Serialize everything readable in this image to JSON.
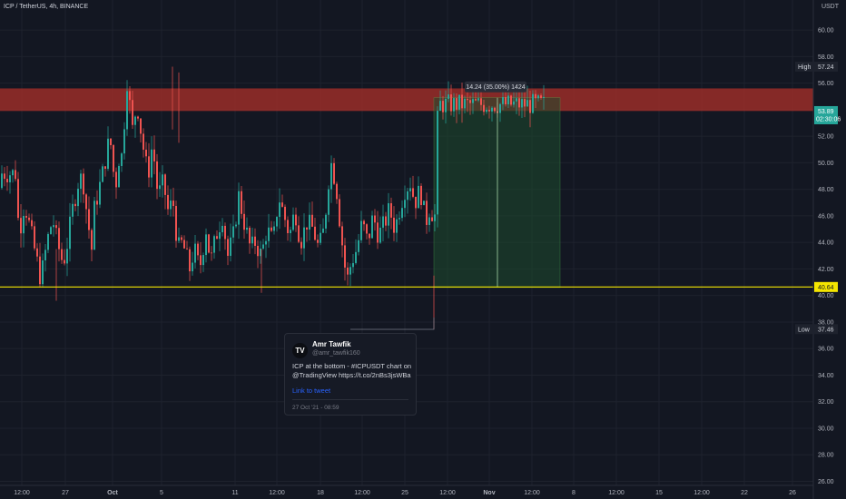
{
  "header": {
    "symbol": "ICP / TetherUS, 4h, BINANCE",
    "currency": "USDT"
  },
  "colors": {
    "background": "#131722",
    "up": "#26a69a",
    "down": "#ef5350",
    "resistance_zone": "#b2302a",
    "support_line": "#f5e600",
    "measure_zone": "#1e4a2e"
  },
  "chart_data": {
    "type": "candlestick",
    "ylim": [
      26,
      62
    ],
    "y_ticks": [
      26,
      28,
      30,
      32,
      34,
      36,
      38,
      40,
      42,
      44,
      46,
      48,
      50,
      52,
      54,
      56,
      58,
      60
    ],
    "y_tick_labels": [
      "26.00",
      "28.00",
      "30.00",
      "32.00",
      "34.00",
      "36.00",
      "38.00",
      "40.00",
      "42.00",
      "44.00",
      "46.00",
      "48.00",
      "50.00",
      "52.00",
      "54.00",
      "56.00",
      "58.00",
      "60.00"
    ],
    "x_ticks": [
      "12:00",
      "27",
      "Oct",
      "5",
      "11",
      "12:00",
      "18",
      "12:00",
      "25",
      "12:00",
      "Nov",
      "12:00",
      "8",
      "12:00",
      "15",
      "12:00",
      "22",
      "26"
    ],
    "grid": true,
    "close_path": [
      [
        22,
        48.1
      ],
      [
        -6,
        49.2
      ],
      [
        4,
        44.6
      ],
      [
        6,
        47.0
      ],
      [
        10,
        43.8
      ],
      [
        8,
        41.2
      ],
      [
        7,
        44.1
      ],
      [
        6,
        45.8
      ],
      [
        5,
        44.0
      ],
      [
        6,
        42.5
      ],
      [
        3,
        43.0
      ],
      [
        8,
        46.5
      ],
      [
        6,
        48.5
      ],
      [
        5,
        49.0
      ],
      [
        5,
        46.0
      ],
      [
        6,
        43.0
      ],
      [
        2,
        46.5
      ],
      [
        10,
        49.5
      ],
      [
        7,
        52.0
      ],
      [
        6,
        48.0
      ],
      [
        6,
        51.5
      ],
      [
        2,
        49.5
      ],
      [
        4,
        56.8
      ],
      [
        7,
        52.5
      ],
      [
        5,
        54.5
      ],
      [
        6,
        51.5
      ],
      [
        6,
        49.0
      ],
      [
        5,
        51.5
      ],
      [
        6,
        47.5
      ],
      [
        6,
        48.5
      ],
      [
        6,
        46.0
      ],
      [
        4,
        47.5
      ],
      [
        6,
        43.5
      ],
      [
        5,
        44.0
      ],
      [
        8,
        42.0
      ],
      [
        5,
        43.5
      ],
      [
        6,
        42.0
      ],
      [
        7,
        45.0
      ],
      [
        5,
        42.5
      ],
      [
        6,
        44.5
      ],
      [
        7,
        46.0
      ],
      [
        6,
        43.0
      ],
      [
        6,
        44.5
      ],
      [
        6,
        47.5
      ],
      [
        6,
        45.5
      ],
      [
        7,
        43.5
      ],
      [
        5,
        44.0
      ],
      [
        7,
        43.0
      ],
      [
        6,
        45.0
      ],
      [
        7,
        44.0
      ],
      [
        6,
        47.5
      ],
      [
        6,
        46.0
      ],
      [
        6,
        44.5
      ],
      [
        6,
        46.5
      ],
      [
        6,
        44.0
      ],
      [
        7,
        45.5
      ],
      [
        7,
        45.0
      ],
      [
        6,
        43.5
      ],
      [
        6,
        45.0
      ],
      [
        7,
        50.2
      ],
      [
        6,
        48.5
      ],
      [
        6,
        44.5
      ],
      [
        6,
        41.0
      ],
      [
        5,
        42.5
      ],
      [
        6,
        43.5
      ],
      [
        6,
        45.5
      ],
      [
        6,
        44.0
      ],
      [
        6,
        46.0
      ],
      [
        6,
        44.5
      ],
      [
        7,
        45.5
      ],
      [
        5,
        46.5
      ],
      [
        6,
        45.0
      ],
      [
        5,
        46.5
      ],
      [
        6,
        48.0
      ],
      [
        6,
        48.5
      ],
      [
        5,
        47.0
      ],
      [
        6,
        48.0
      ],
      [
        6,
        45.5
      ],
      [
        4,
        46.5
      ],
      [
        6,
        46.0
      ],
      [
        2,
        52.0
      ],
      [
        2,
        54.4
      ],
      [
        0,
        54.4
      ]
    ],
    "resistance_zone": [
      53.9,
      55.6
    ],
    "support_level": 40.64,
    "price_tags": [
      {
        "label": "High",
        "value": "57.24",
        "price": 57.24
      },
      {
        "label": "",
        "value": "53.89",
        "sub": "02:30:06",
        "price": 53.89
      },
      {
        "label": "",
        "value": "40.64",
        "price": 40.64
      },
      {
        "label": "Low",
        "value": "37.46",
        "price": 37.46
      }
    ],
    "measure": {
      "label": "14.24 (35.00%) 1424",
      "from_price": 40.6,
      "to_price": 54.9
    }
  },
  "tweet": {
    "logo": "TV",
    "author": "Amr Tawfik",
    "handle": "@amr_tawfik160",
    "text": "ICP at the bottom - #ICPUSDT chart on @TradingView https://t.co/2nBs3jsWBa",
    "link_label": "Link to tweet",
    "date": "27 Oct '21 - 08:59"
  }
}
